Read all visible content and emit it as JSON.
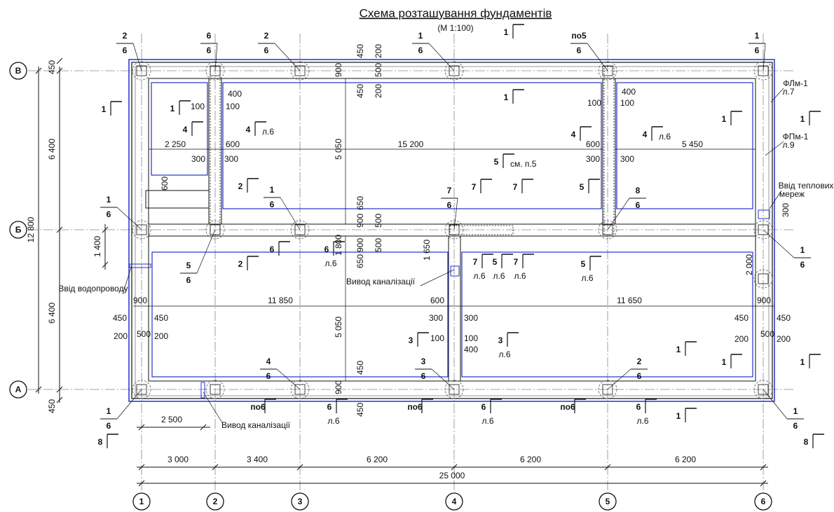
{
  "title": "Схема розташування фундаментів",
  "scale": "(М 1:100)",
  "axes": {
    "columns": [
      "1",
      "2",
      "3",
      "4",
      "5",
      "6"
    ],
    "rows": [
      "В",
      "Б",
      "А"
    ]
  },
  "bottom_dims": [
    "3 000",
    "3 400",
    "6 200",
    "6 200",
    "6 200",
    "25 000",
    "2 500"
  ],
  "left_dims": [
    "450",
    "6 400",
    "12 800",
    "1 400",
    "6 400",
    "450"
  ],
  "notes": [
    "ФЛм-1",
    "л.7",
    "ФПм-1",
    "л.9",
    "Ввід теплових",
    "мереж",
    "Ввід водопроводу",
    "Вивод каналізації",
    "Вивод каналізації"
  ],
  "dims": [
    "450",
    "200",
    "900",
    "500",
    "450",
    "200",
    "400",
    "100",
    "100",
    "2 250",
    "600",
    "5 050",
    "15 200",
    "300",
    "300",
    "400",
    "100",
    "100",
    "600",
    "5 450",
    "300",
    "300",
    "600",
    "650",
    "1 800",
    "900",
    "500",
    "900",
    "500",
    "650",
    "1 650",
    "300",
    "2 000",
    "900",
    "11 850",
    "600",
    "11 650",
    "900",
    "450",
    "450",
    "300",
    "300",
    "450",
    "450",
    "200",
    "500",
    "200",
    "100",
    "100",
    "400",
    "200",
    "500",
    "200",
    "5 050",
    "450",
    "900",
    "450"
  ],
  "callouts": [
    {
      "top": "2",
      "bottom": "6"
    },
    {
      "top": "6",
      "bottom": "6"
    },
    {
      "top": "2",
      "bottom": "6"
    },
    {
      "top": "1",
      "bottom": "6"
    },
    {
      "top": "по5",
      "bottom": "6"
    },
    {
      "top": "1",
      "bottom": "6"
    },
    {
      "top": "1",
      "bottom": "6"
    },
    {
      "top": "1",
      "bottom": "6"
    },
    {
      "top": "7",
      "bottom": "6"
    },
    {
      "top": "8",
      "bottom": "6"
    },
    {
      "top": "1",
      "bottom": "6"
    },
    {
      "top": "5",
      "bottom": "6"
    },
    {
      "top": "4",
      "bottom": "6"
    },
    {
      "top": "3",
      "bottom": "6"
    },
    {
      "top": "2",
      "bottom": "6"
    },
    {
      "top": "1",
      "bottom": "6"
    },
    {
      "top": "1",
      "bottom": "6"
    }
  ],
  "sections": [
    {
      "mark": "1"
    },
    {
      "mark": "1"
    },
    {
      "mark": "4"
    },
    {
      "mark": "4",
      "sheet": "л.6"
    },
    {
      "mark": "1"
    },
    {
      "mark": "1"
    },
    {
      "mark": "4"
    },
    {
      "mark": "4",
      "sheet": "л.6"
    },
    {
      "mark": "1"
    },
    {
      "mark": "1"
    },
    {
      "mark": "5",
      "sheet": "см. п.5"
    },
    {
      "mark": "2"
    },
    {
      "mark": "7"
    },
    {
      "mark": "7"
    },
    {
      "mark": "5"
    },
    {
      "mark": "6"
    },
    {
      "mark": "6",
      "sheet": "л.6"
    },
    {
      "mark": "2"
    },
    {
      "mark": "7",
      "sheet": "л.6"
    },
    {
      "mark": "5",
      "sheet": "л.6"
    },
    {
      "mark": "7",
      "sheet": "л.6"
    },
    {
      "mark": "5",
      "sheet": "л.6"
    },
    {
      "mark": "3"
    },
    {
      "mark": "3",
      "sheet": "л.6"
    },
    {
      "mark": "1"
    },
    {
      "mark": "1"
    },
    {
      "mark": "1"
    },
    {
      "mark": "по6"
    },
    {
      "mark": "6",
      "sheet": "л.6"
    },
    {
      "mark": "по6"
    },
    {
      "mark": "6",
      "sheet": "л.6"
    },
    {
      "mark": "по6"
    },
    {
      "mark": "6",
      "sheet": "л.6"
    },
    {
      "mark": "1"
    },
    {
      "mark": "8"
    },
    {
      "mark": "8"
    }
  ]
}
